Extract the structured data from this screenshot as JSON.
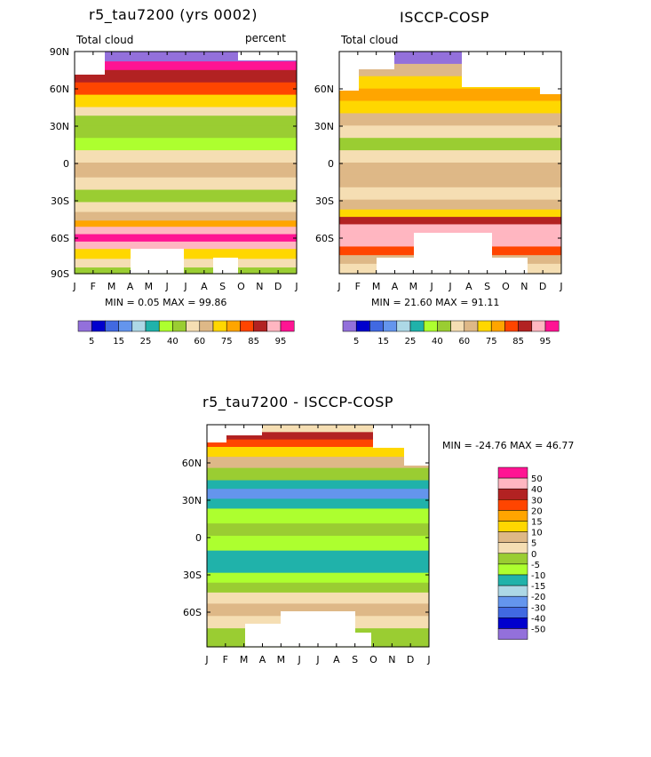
{
  "chart_data": [
    {
      "type": "heatmap",
      "title": "r5_tau7200 (yrs 0002)",
      "subtitle_left": "Total cloud",
      "subtitle_right": "percent",
      "x_ticks": [
        "J",
        "F",
        "M",
        "A",
        "M",
        "J",
        "J",
        "A",
        "S",
        "O",
        "N",
        "D",
        "J"
      ],
      "y_ticks": [
        "90N",
        "60N",
        "30N",
        "0",
        "30S",
        "60S",
        "90S"
      ],
      "stats": "MIN =    0.05 MAX =  99.86",
      "legend_labels": [
        "5",
        "15",
        "25",
        "40",
        "60",
        "75",
        "85",
        "95"
      ],
      "ylim": [
        -90,
        90
      ],
      "bands": [
        {
          "lat": 90,
          "value": 0
        },
        {
          "lat": 82,
          "value": 95
        },
        {
          "lat": 75,
          "value": 88
        },
        {
          "lat": 65,
          "value": 80
        },
        {
          "lat": 55,
          "value": 72
        },
        {
          "lat": 45,
          "value": 58
        },
        {
          "lat": 38,
          "value": 48
        },
        {
          "lat": 30,
          "value": 40
        },
        {
          "lat": 20,
          "value": 38
        },
        {
          "lat": 10,
          "value": 55
        },
        {
          "lat": 0,
          "value": 60
        },
        {
          "lat": -12,
          "value": 52
        },
        {
          "lat": -22,
          "value": 45
        },
        {
          "lat": -32,
          "value": 50
        },
        {
          "lat": -40,
          "value": 62
        },
        {
          "lat": -47,
          "value": 78
        },
        {
          "lat": -52,
          "value": 90
        },
        {
          "lat": -58,
          "value": 96
        },
        {
          "lat": -64,
          "value": 90
        },
        {
          "lat": -70,
          "value": 72
        },
        {
          "lat": -78,
          "value": 50
        },
        {
          "lat": -85,
          "value": 42
        },
        {
          "lat": -90,
          "value": 40
        }
      ]
    },
    {
      "type": "heatmap",
      "title": "ISCCP-COSP",
      "subtitle_left": "Total cloud",
      "x_ticks": [
        "J",
        "F",
        "M",
        "A",
        "M",
        "J",
        "J",
        "A",
        "S",
        "O",
        "N",
        "D",
        "J"
      ],
      "y_ticks": [
        "60N",
        "30N",
        "0",
        "30S",
        "60S"
      ],
      "stats": "MIN =   21.60 MAX =  91.11",
      "legend_labels": [
        "5",
        "15",
        "25",
        "40",
        "60",
        "75",
        "85",
        "95"
      ],
      "ylim": [
        -90,
        90
      ],
      "bands": [
        {
          "lat": 90,
          "value": 0
        },
        {
          "lat": 80,
          "value": 60
        },
        {
          "lat": 70,
          "value": 72
        },
        {
          "lat": 60,
          "value": 78
        },
        {
          "lat": 50,
          "value": 72
        },
        {
          "lat": 40,
          "value": 62
        },
        {
          "lat": 30,
          "value": 55
        },
        {
          "lat": 20,
          "value": 42
        },
        {
          "lat": 10,
          "value": 58
        },
        {
          "lat": 0,
          "value": 60
        },
        {
          "lat": -10,
          "value": 60
        },
        {
          "lat": -20,
          "value": 55
        },
        {
          "lat": -30,
          "value": 64
        },
        {
          "lat": -38,
          "value": 74
        },
        {
          "lat": -44,
          "value": 85
        },
        {
          "lat": -50,
          "value": 90
        },
        {
          "lat": -60,
          "value": 90
        },
        {
          "lat": -68,
          "value": 80
        },
        {
          "lat": -75,
          "value": 65
        },
        {
          "lat": -82,
          "value": 58
        },
        {
          "lat": -90,
          "value": 55
        }
      ]
    },
    {
      "type": "heatmap",
      "title": "r5_tau7200 - ISCCP-COSP",
      "x_ticks": [
        "J",
        "F",
        "M",
        "A",
        "M",
        "J",
        "J",
        "A",
        "S",
        "O",
        "N",
        "D",
        "J"
      ],
      "y_ticks": [
        "60N",
        "30N",
        "0",
        "30S",
        "60S"
      ],
      "stats": "MIN = -24.76 MAX =  46.77",
      "legend_labels": [
        "50",
        "40",
        "30",
        "20",
        "15",
        "10",
        "5",
        "0",
        "-5",
        "-10",
        "-15",
        "-20",
        "-30",
        "-40",
        "-50"
      ],
      "ylim": [
        -90,
        90
      ],
      "bands": [
        {
          "lat": 90,
          "value": 0
        },
        {
          "lat": 84,
          "value": 35
        },
        {
          "lat": 78,
          "value": 22
        },
        {
          "lat": 72,
          "value": 12
        },
        {
          "lat": 64,
          "value": 5
        },
        {
          "lat": 55,
          "value": -5
        },
        {
          "lat": 45,
          "value": -15
        },
        {
          "lat": 38,
          "value": -22
        },
        {
          "lat": 30,
          "value": -12
        },
        {
          "lat": 22,
          "value": -8
        },
        {
          "lat": 10,
          "value": -3
        },
        {
          "lat": 0,
          "value": -7
        },
        {
          "lat": -12,
          "value": -12
        },
        {
          "lat": -22,
          "value": -15
        },
        {
          "lat": -30,
          "value": -8
        },
        {
          "lat": -38,
          "value": -4
        },
        {
          "lat": -46,
          "value": 2
        },
        {
          "lat": -55,
          "value": 6
        },
        {
          "lat": -65,
          "value": 3
        },
        {
          "lat": -75,
          "value": -3
        },
        {
          "lat": -90,
          "value": -6
        }
      ]
    }
  ],
  "colors": {
    "main_scale": [
      "#9370db",
      "#0000cd",
      "#4169e1",
      "#6495ed",
      "#add8e6",
      "#20b2aa",
      "#adff2f",
      "#9acd32",
      "#f5deb3",
      "#deb887",
      "#ffd700",
      "#ffa500",
      "#ff4500",
      "#b22222",
      "#ffb6c1",
      "#ff1493"
    ],
    "diff_scale": [
      "#ff1493",
      "#ffb6c1",
      "#b22222",
      "#ff4500",
      "#ffa500",
      "#ffd700",
      "#deb887",
      "#f5deb3",
      "#9acd32",
      "#adff2f",
      "#20b2aa",
      "#add8e6",
      "#6495ed",
      "#4169e1",
      "#0000cd",
      "#9370db"
    ]
  }
}
